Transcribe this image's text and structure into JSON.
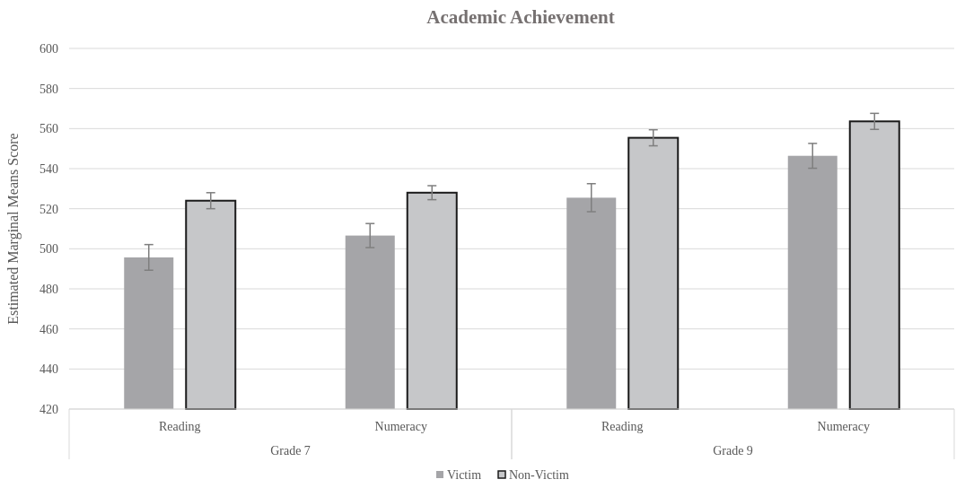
{
  "chart_data": {
    "type": "bar",
    "title": "Academic Achievement",
    "ylabel": "Estimated Marginal Means Score",
    "categories": [
      "Reading",
      "Numeracy",
      "Reading",
      "Numeracy"
    ],
    "series": [
      {
        "name": "Victim",
        "color": "#a5a5a8",
        "values": [
          495.7,
          506.6,
          525.5,
          546.4
        ],
        "errors": [
          6.4,
          6,
          7,
          6.2
        ]
      },
      {
        "name": "Non-Victim",
        "color": "#c6c7c9",
        "values": [
          524,
          528,
          555.4,
          563.6
        ],
        "errors": [
          4,
          3.5,
          4,
          4
        ]
      }
    ],
    "ylim": [
      420,
      600
    ],
    "yticks": [
      420,
      440,
      460,
      480,
      500,
      520,
      540,
      560,
      580,
      600
    ],
    "grid": "y",
    "legend": "bottom",
    "annotations": [
      "Grade 7",
      "Grade 9"
    ]
  }
}
